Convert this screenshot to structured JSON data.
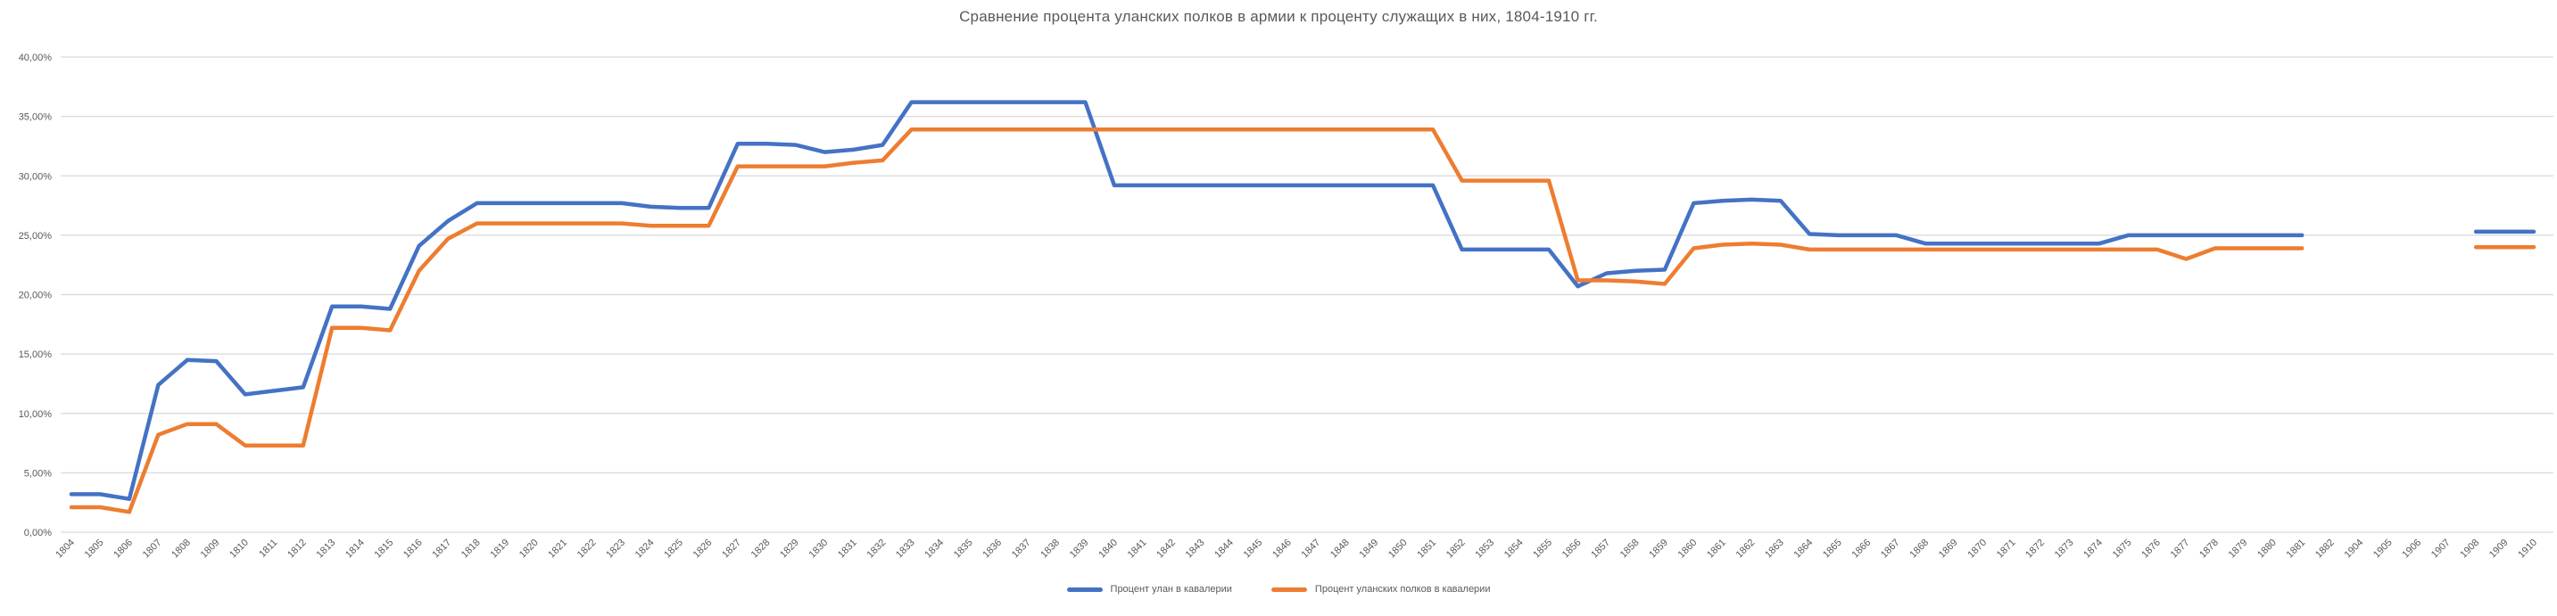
{
  "title": "Сравнение процента уланских полков в армии к проценту служащих в них, 1804-1910 гг.",
  "colors": {
    "series_blue": "#4472C4",
    "series_orange": "#ED7D31",
    "grid": "#D9D9D9",
    "text": "#595959",
    "background": "#FFFFFF"
  },
  "chart_data": {
    "type": "line",
    "title": "Сравнение процента уланских полков в армии к проценту служащих в них, 1804-1910 гг.",
    "xlabel": "",
    "ylabel": "",
    "ylim": [
      0,
      40
    ],
    "grid": true,
    "legend_position": "bottom",
    "grid_color": "#D9D9D9",
    "text_color": "#595959",
    "y_ticks": [
      "0,00%",
      "5,00%",
      "10,00%",
      "15,00%",
      "20,00%",
      "25,00%",
      "30,00%",
      "35,00%",
      "40,00%"
    ],
    "categories": [
      "1804",
      "1805",
      "1806",
      "1807",
      "1808",
      "1809",
      "1810",
      "1811",
      "1812",
      "1813",
      "1814",
      "1815",
      "1816",
      "1817",
      "1818",
      "1819",
      "1820",
      "1821",
      "1822",
      "1823",
      "1824",
      "1825",
      "1826",
      "1827",
      "1828",
      "1829",
      "1830",
      "1831",
      "1832",
      "1833",
      "1834",
      "1835",
      "1836",
      "1837",
      "1838",
      "1839",
      "1840",
      "1841",
      "1842",
      "1843",
      "1844",
      "1845",
      "1846",
      "1847",
      "1848",
      "1849",
      "1850",
      "1851",
      "1852",
      "1853",
      "1854",
      "1855",
      "1856",
      "1857",
      "1858",
      "1859",
      "1860",
      "1861",
      "1862",
      "1863",
      "1864",
      "1865",
      "1866",
      "1867",
      "1868",
      "1869",
      "1870",
      "1871",
      "1872",
      "1873",
      "1874",
      "1875",
      "1876",
      "1877",
      "1878",
      "1879",
      "1880",
      "1881",
      "1882",
      "1904",
      "1905",
      "1906",
      "1907",
      "1908",
      "1909",
      "1910"
    ],
    "series": [
      {
        "name": "Процент улан в кавалерии",
        "color": "#4472C4",
        "values": [
          3.2,
          3.2,
          2.8,
          12.4,
          14.5,
          14.4,
          11.6,
          11.9,
          12.2,
          19.0,
          19.0,
          18.8,
          24.1,
          26.2,
          27.7,
          27.7,
          27.7,
          27.7,
          27.7,
          27.7,
          27.4,
          27.3,
          27.3,
          32.7,
          32.7,
          32.6,
          32.0,
          32.2,
          32.6,
          36.2,
          36.2,
          36.2,
          36.2,
          36.2,
          36.2,
          36.2,
          29.2,
          29.2,
          29.2,
          29.2,
          29.2,
          29.2,
          29.2,
          29.2,
          29.2,
          29.2,
          29.2,
          29.2,
          23.8,
          23.8,
          23.8,
          23.8,
          20.7,
          21.8,
          22.0,
          22.1,
          27.7,
          27.9,
          28.0,
          27.9,
          25.1,
          25.0,
          25.0,
          25.0,
          24.3,
          24.3,
          24.3,
          24.3,
          24.3,
          24.3,
          24.3,
          25.0,
          25.0,
          25.0,
          25.0,
          25.0,
          25.0,
          25.0,
          null,
          null,
          null,
          null,
          null,
          25.3,
          25.3,
          25.3
        ]
      },
      {
        "name": "Процент уланских полков в кавалерии",
        "color": "#ED7D31",
        "values": [
          2.1,
          2.1,
          1.7,
          8.2,
          9.1,
          9.1,
          7.3,
          7.3,
          7.3,
          17.2,
          17.2,
          17.0,
          22.0,
          24.7,
          26.0,
          26.0,
          26.0,
          26.0,
          26.0,
          26.0,
          25.8,
          25.8,
          25.8,
          30.8,
          30.8,
          30.8,
          30.8,
          31.1,
          31.3,
          33.9,
          33.9,
          33.9,
          33.9,
          33.9,
          33.9,
          33.9,
          33.9,
          33.9,
          33.9,
          33.9,
          33.9,
          33.9,
          33.9,
          33.9,
          33.9,
          33.9,
          33.9,
          33.9,
          29.6,
          29.6,
          29.6,
          29.6,
          21.2,
          21.2,
          21.1,
          20.9,
          23.9,
          24.2,
          24.3,
          24.2,
          23.8,
          23.8,
          23.8,
          23.8,
          23.8,
          23.8,
          23.8,
          23.8,
          23.8,
          23.8,
          23.8,
          23.8,
          23.8,
          23.0,
          23.9,
          23.9,
          23.9,
          23.9,
          null,
          null,
          null,
          null,
          null,
          24.0,
          24.0,
          24.0
        ]
      }
    ]
  }
}
